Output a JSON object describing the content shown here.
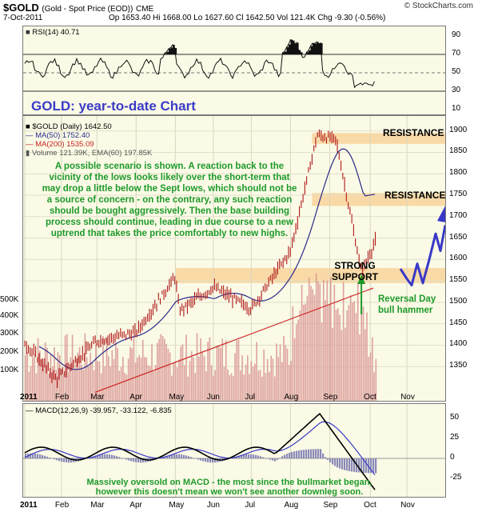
{
  "header": {
    "symbol": "$GOLD",
    "symbol_desc": "(Gold - Spot Price (EOD))",
    "exchange": "CME",
    "date": "7-Oct-2011",
    "ohlc": "Op 1653.40  Hi 1668.00  Lo 1627.60  Cl 1642.50  Vol 121.4K  Chg -9.30 (-0.56%)",
    "brand": "© StockCharts.com"
  },
  "rsi": {
    "label": "RSI(14) 40.71",
    "ticks": [
      "90",
      "70",
      "50",
      "30",
      "10"
    ]
  },
  "main": {
    "title": "GOLD: year-to-date Chart",
    "legend": [
      "$GOLD (Daily) 1642.50",
      "MA(50) 1752.40",
      "MA(200) 1535.09",
      "Volume 121.39K, EMA(60) 197.85K"
    ],
    "price_ticks": [
      "1900",
      "1850",
      "1800",
      "1750",
      "1700",
      "1650",
      "1600",
      "1550",
      "1500",
      "1450",
      "1400",
      "1350"
    ],
    "volume_ticks": [
      "500K",
      "400K",
      "300K",
      "200K",
      "100K"
    ],
    "resistance1": "RESISTANCE",
    "resistance2": "RESISTANCE",
    "support_line1": "STRONG",
    "support_line2": "SUPPORT",
    "reversal_line1": "Reversal Day",
    "reversal_line2": "bull hammer",
    "note": "A possible scenario is shown. A reaction back to the vicinity of the lows looks likely over the short-term that may drop a little below the Sept lows, which should not be a source of concern - on the contrary, any such reaction should be bought aggressively. Then the base building process should continue, leading in due course to a new uptrend that takes the price comfortably to new highs."
  },
  "macd": {
    "label": "MACD(12,26,9) -39.957, -33.122, -6.835",
    "ticks": [
      "50",
      "25",
      "0",
      "-25"
    ],
    "note_line1": "Massively oversold on MACD - the most since the bullmarket began,",
    "note_line2": "however this doesn't mean we won't see another downleg soon."
  },
  "months": [
    "2011",
    "Feb",
    "Mar",
    "Apr",
    "May",
    "Jun",
    "Jul",
    "Aug",
    "Sep",
    "Oct",
    "Nov"
  ],
  "colors": {
    "panel_bg": "#fafae6",
    "band": "#f9d9a6",
    "ma50": "#2a2a8c",
    "ma200": "#cc2222",
    "candle": "#b01818",
    "volume": "#d89090",
    "projection": "#3838c8",
    "note_green": "#1e9a2a",
    "title_blue": "#3b3bc8"
  },
  "chart_data": {
    "type": "line",
    "title": "GOLD: year-to-date Chart",
    "x_range": [
      "2011-01-03",
      "2011-11-30"
    ],
    "price_ylim": [
      1300,
      1920
    ],
    "gold_close_checkpoints": [
      {
        "date": "2011-01-03",
        "value": 1405
      },
      {
        "date": "2011-01-28",
        "value": 1320
      },
      {
        "date": "2011-03-01",
        "value": 1410
      },
      {
        "date": "2011-04-01",
        "value": 1430
      },
      {
        "date": "2011-05-02",
        "value": 1560
      },
      {
        "date": "2011-05-05",
        "value": 1480
      },
      {
        "date": "2011-06-01",
        "value": 1535
      },
      {
        "date": "2011-07-01",
        "value": 1485
      },
      {
        "date": "2011-08-01",
        "value": 1620
      },
      {
        "date": "2011-08-22",
        "value": 1890
      },
      {
        "date": "2011-09-06",
        "value": 1880
      },
      {
        "date": "2011-09-26",
        "value": 1570
      },
      {
        "date": "2011-10-07",
        "value": 1642.5
      }
    ],
    "ma50_last": 1752.4,
    "ma200_last": 1535.09,
    "rsi_last": 40.71,
    "rsi_ylim": [
      10,
      90
    ],
    "macd": {
      "macd": -39.957,
      "signal": -33.122,
      "histogram": -6.835,
      "ylim": [
        -40,
        60
      ]
    },
    "zones": {
      "resistance_high": [
        1870,
        1895
      ],
      "resistance_mid": [
        1725,
        1755
      ],
      "support": [
        1545,
        1580
      ]
    }
  }
}
